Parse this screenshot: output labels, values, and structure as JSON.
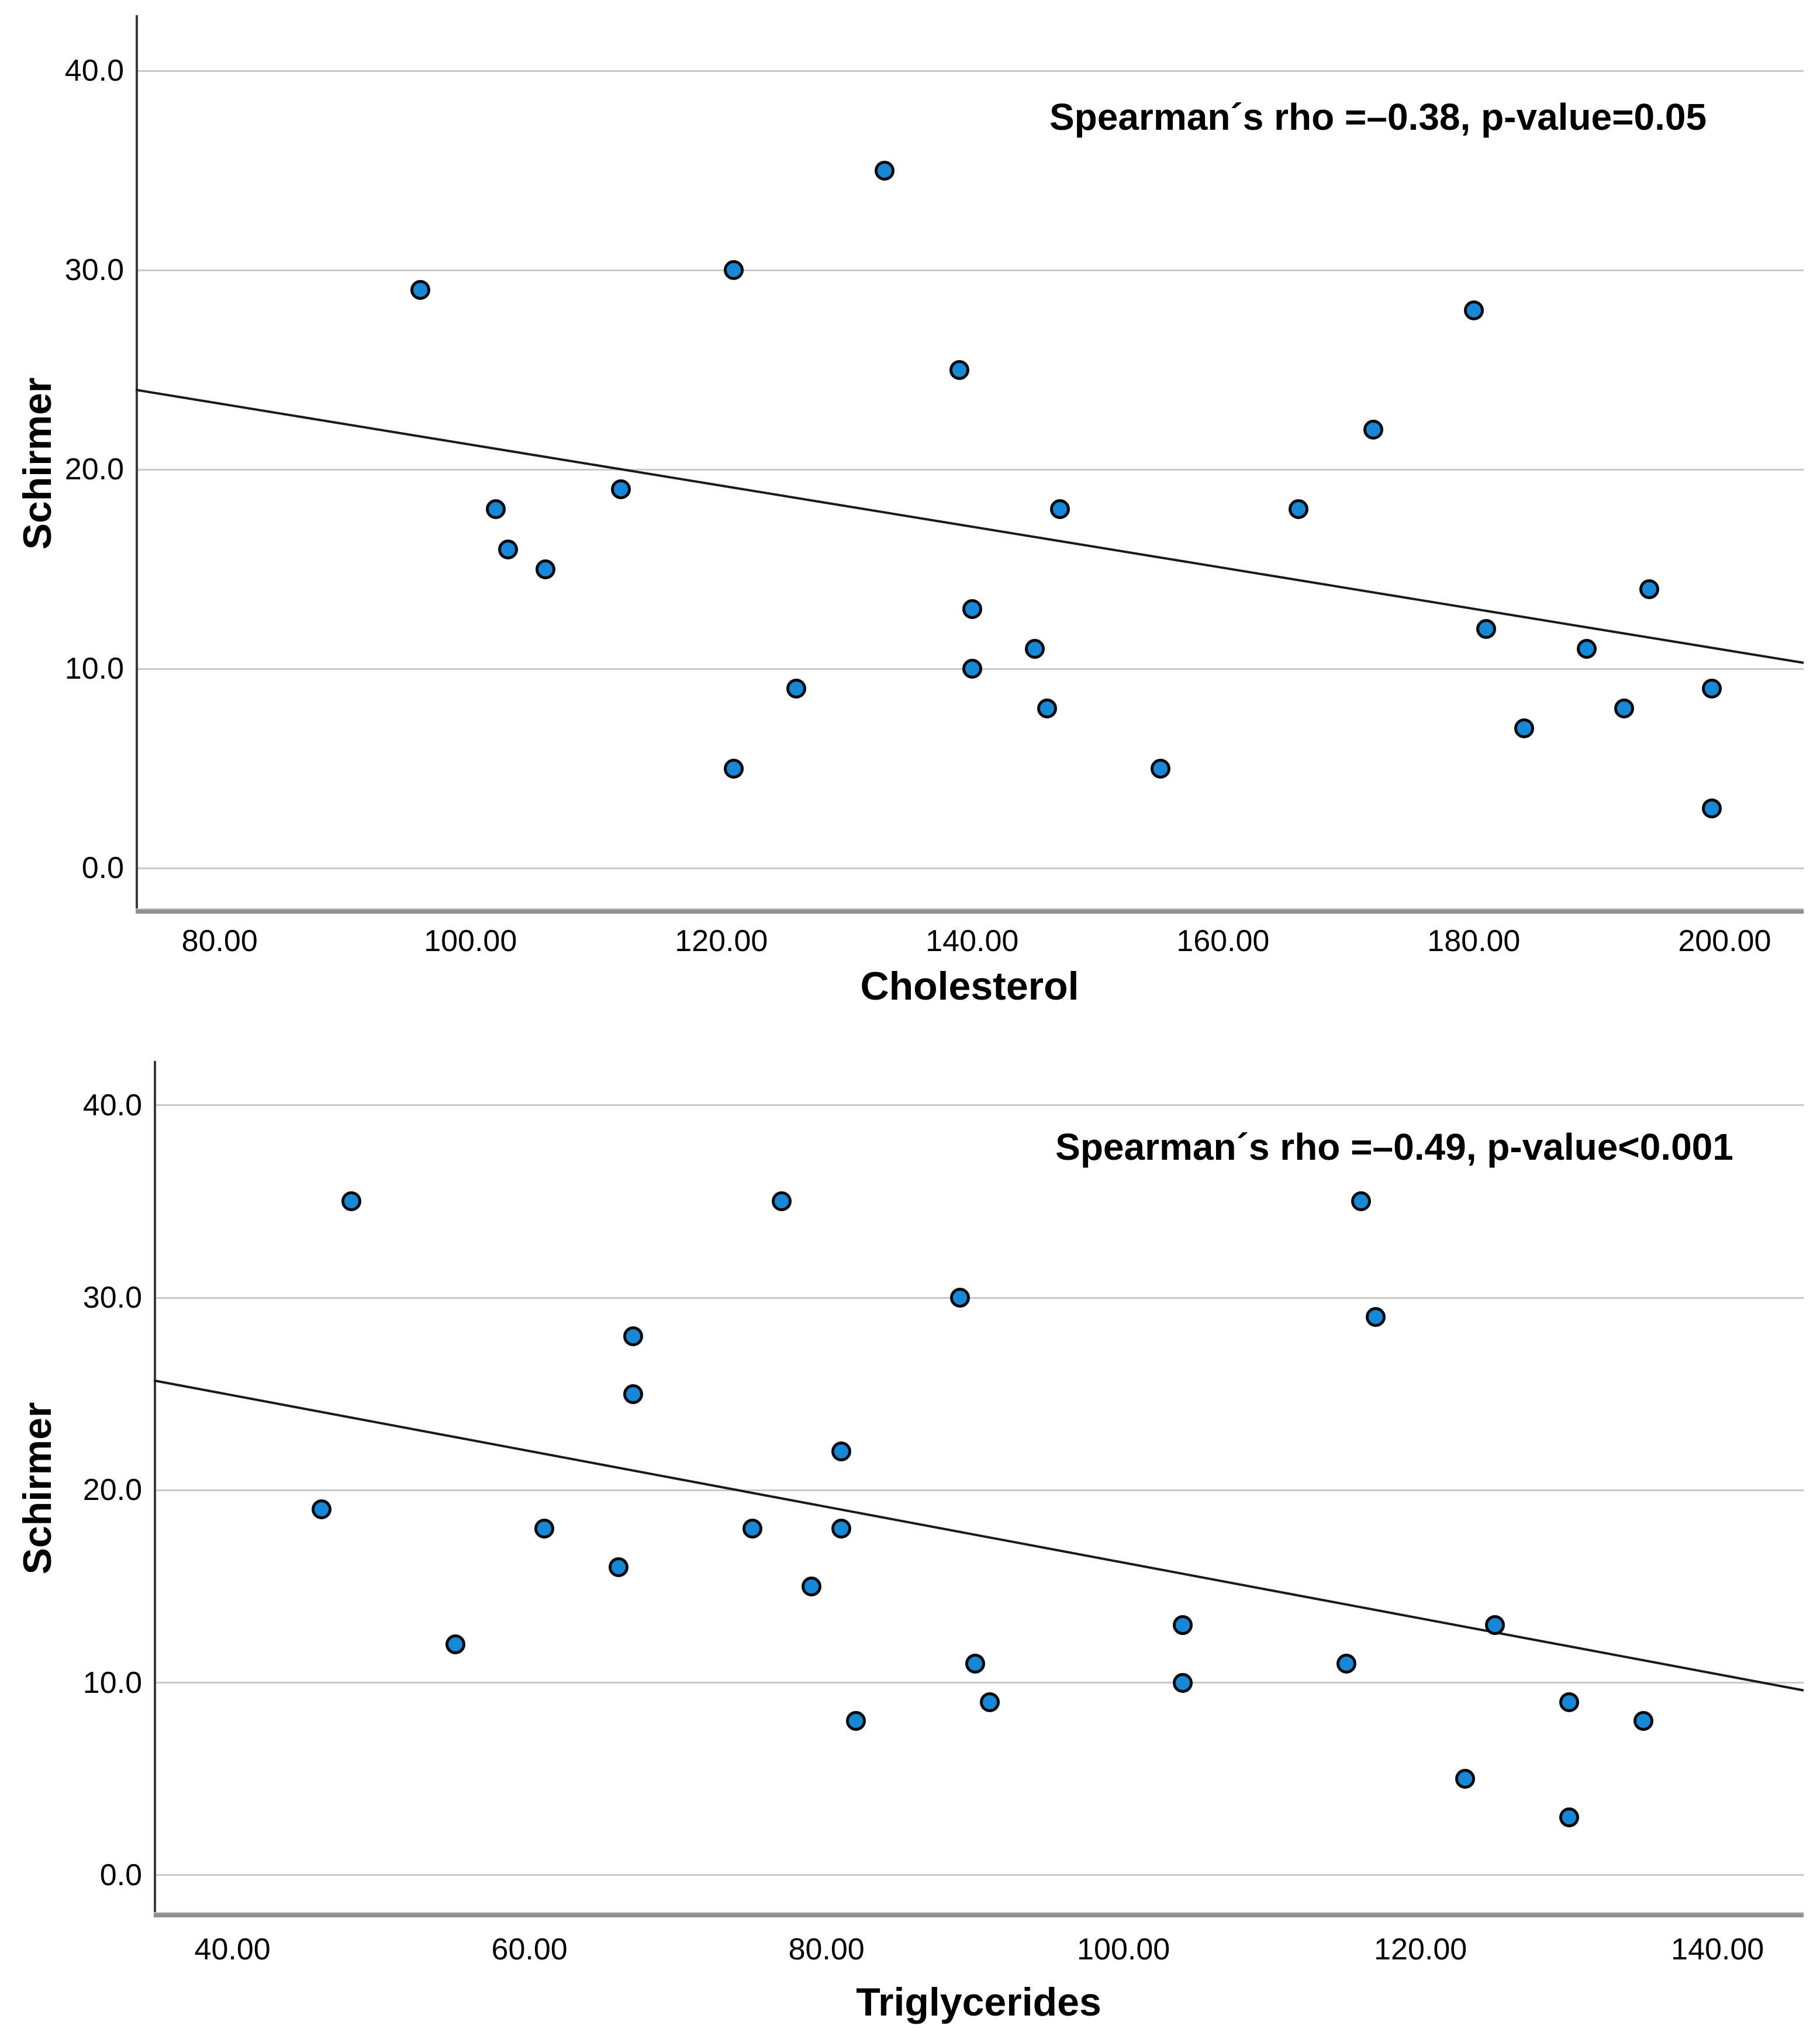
{
  "page": {
    "background": "#ffffff"
  },
  "chart_data": [
    {
      "type": "scatter",
      "title": "",
      "xlabel": "Cholesterol",
      "ylabel": "Schirmer",
      "annotation": "Spearman´s rho =–0.38, p-value=0.05",
      "legend": "none",
      "grid": "horizontal-only",
      "marker_color": "#1787D8",
      "marker_outline": "#0a0a0a",
      "xlim": [
        73.3,
        206.3
      ],
      "ylim": [
        -2.2,
        42.8
      ],
      "x_tick_values": [
        80,
        100,
        120,
        140,
        160,
        180,
        200
      ],
      "x_tick_labels": [
        "80.00",
        "100.00",
        "120.00",
        "140.00",
        "160.00",
        "180.00",
        "200.00"
      ],
      "y_tick_values": [
        0,
        10,
        20,
        30,
        40
      ],
      "y_tick_labels": [
        "0.0",
        "10.0",
        "20.0",
        "30.0",
        "40.0"
      ],
      "points": [
        [
          96,
          29
        ],
        [
          121,
          30
        ],
        [
          133,
          35
        ],
        [
          139,
          25
        ],
        [
          180,
          28
        ],
        [
          172,
          22
        ],
        [
          102,
          18
        ],
        [
          103,
          16
        ],
        [
          106,
          15
        ],
        [
          112,
          19
        ],
        [
          147,
          18
        ],
        [
          166,
          18
        ],
        [
          140,
          13
        ],
        [
          145,
          11
        ],
        [
          140,
          10
        ],
        [
          126,
          9
        ],
        [
          146,
          8
        ],
        [
          121,
          5
        ],
        [
          155,
          5
        ],
        [
          181,
          12
        ],
        [
          184,
          7
        ],
        [
          189,
          11
        ],
        [
          192,
          8
        ],
        [
          194,
          14
        ],
        [
          199,
          9
        ],
        [
          199,
          3
        ]
      ],
      "fit_line": {
        "x1": 73.3,
        "y1": 24.0,
        "x2": 206.3,
        "y2": 10.3
      }
    },
    {
      "type": "scatter",
      "title": "",
      "xlabel": "Triglycerides",
      "ylabel": "Schirmer",
      "annotation": "Spearman´s rho =–0.49, p-value<0.001",
      "legend": "none",
      "grid": "horizontal-only",
      "marker_color": "#1787D8",
      "marker_outline": "#0a0a0a",
      "xlim": [
        34.7,
        145.8
      ],
      "ylim": [
        -2.1,
        42.3
      ],
      "x_tick_values": [
        40,
        60,
        80,
        100,
        120,
        140
      ],
      "x_tick_labels": [
        "40.00",
        "60.00",
        "80.00",
        "100.00",
        "120.00",
        "140.00"
      ],
      "y_tick_values": [
        0,
        10,
        20,
        30,
        40
      ],
      "y_tick_labels": [
        "0.0",
        "10.0",
        "20.0",
        "30.0",
        "40.0"
      ],
      "points": [
        [
          48,
          35
        ],
        [
          77,
          35
        ],
        [
          116,
          35
        ],
        [
          89,
          30
        ],
        [
          117,
          29
        ],
        [
          67,
          28
        ],
        [
          67,
          25
        ],
        [
          81,
          22
        ],
        [
          46,
          19
        ],
        [
          61,
          18
        ],
        [
          75,
          18
        ],
        [
          81,
          18
        ],
        [
          66,
          16
        ],
        [
          79,
          15
        ],
        [
          55,
          12
        ],
        [
          104,
          13
        ],
        [
          125,
          13
        ],
        [
          104,
          10
        ],
        [
          115,
          11
        ],
        [
          90,
          11
        ],
        [
          91,
          9
        ],
        [
          130,
          9
        ],
        [
          135,
          8
        ],
        [
          82,
          8
        ],
        [
          123,
          5
        ],
        [
          130,
          3
        ]
      ],
      "fit_line": {
        "x1": 34.7,
        "y1": 25.7,
        "x2": 145.8,
        "y2": 9.6
      }
    }
  ]
}
